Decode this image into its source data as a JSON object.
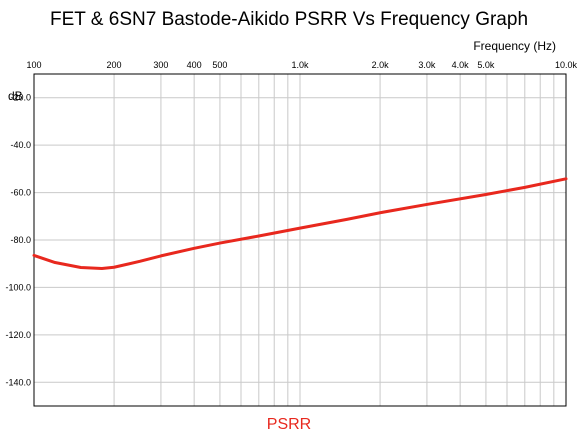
{
  "chart_data": {
    "type": "line",
    "title": "FET & 6SN7 Bastode-Aikido PSRR Vs Frequency Graph",
    "xlabel": "Frequency  (Hz)",
    "ylabel": "dB",
    "xscale": "log",
    "xlim": [
      100,
      10000
    ],
    "ylim": [
      -150,
      -10
    ],
    "grid": true,
    "legend_position": "bottom-center",
    "x_tick_labels": [
      {
        "value": 100,
        "label": "100"
      },
      {
        "value": 200,
        "label": "200"
      },
      {
        "value": 300,
        "label": "300"
      },
      {
        "value": 400,
        "label": "400"
      },
      {
        "value": 500,
        "label": "500"
      },
      {
        "value": 1000,
        "label": "1.0k"
      },
      {
        "value": 2000,
        "label": "2.0k"
      },
      {
        "value": 3000,
        "label": "3.0k"
      },
      {
        "value": 4000,
        "label": "4.0k"
      },
      {
        "value": 5000,
        "label": "5.0k"
      },
      {
        "value": 10000,
        "label": "10.0k"
      }
    ],
    "y_tick_labels": [
      {
        "value": -20,
        "label": "-20.0"
      },
      {
        "value": -40,
        "label": "-40.0"
      },
      {
        "value": -60,
        "label": "-60.0"
      },
      {
        "value": -80,
        "label": "-80.0"
      },
      {
        "value": -100,
        "label": "-100.0"
      },
      {
        "value": -120,
        "label": "-120.0"
      },
      {
        "value": -140,
        "label": "-140.0"
      }
    ],
    "series": [
      {
        "name": "PSRR",
        "color": "#e8281e",
        "x": [
          100,
          120,
          150,
          180,
          200,
          250,
          300,
          400,
          500,
          700,
          1000,
          1500,
          2000,
          3000,
          5000,
          7000,
          10000
        ],
        "y": [
          -86.5,
          -89.5,
          -91.6,
          -92.0,
          -91.5,
          -89.0,
          -86.7,
          -83.5,
          -81.3,
          -78.3,
          -75.0,
          -71.3,
          -68.5,
          -65.0,
          -60.8,
          -57.8,
          -54.2
        ]
      }
    ]
  }
}
